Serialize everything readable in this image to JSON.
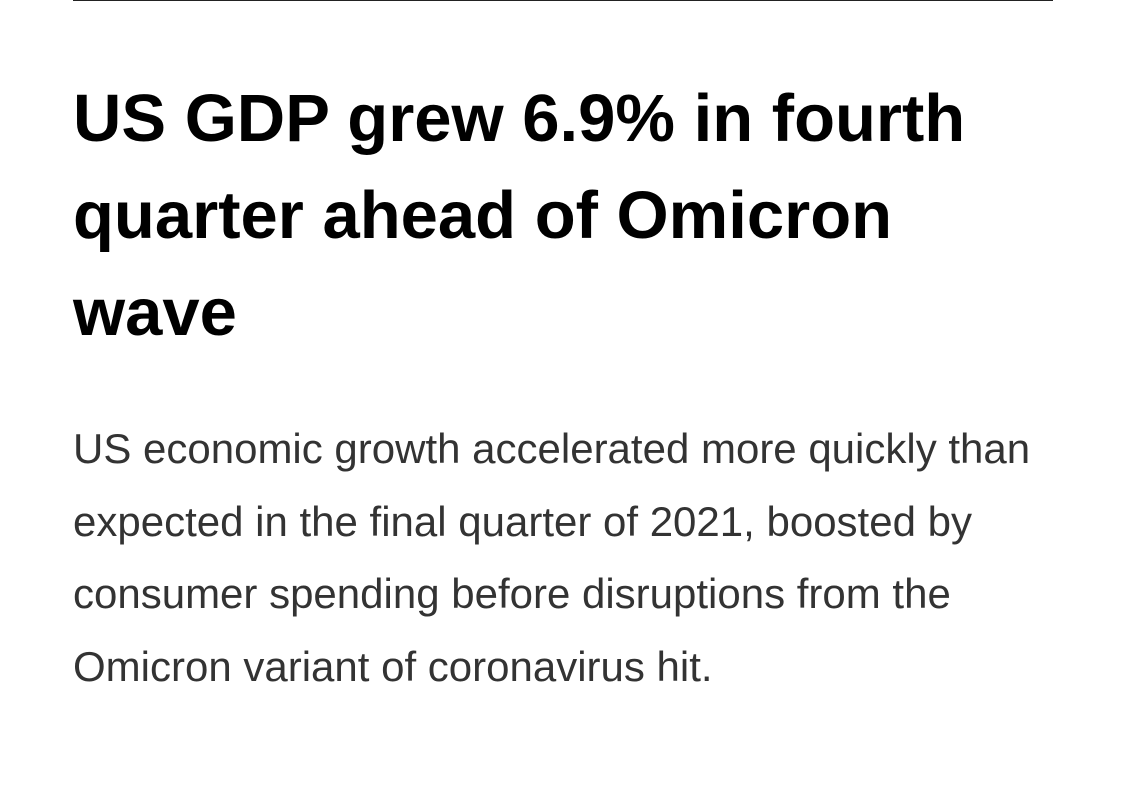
{
  "article": {
    "headline": "US GDP grew 6.9% in fourth quarter ahead of Omicron wave",
    "standfirst": "US economic growth accelerated more quickly than expected in the final quarter of 2021, boosted by consumer spending before disruptions from the Omicron variant of coronavirus hit."
  },
  "colors": {
    "background": "#ffffff",
    "headline": "#000000",
    "body_text": "#333333",
    "rule": "#222222"
  }
}
